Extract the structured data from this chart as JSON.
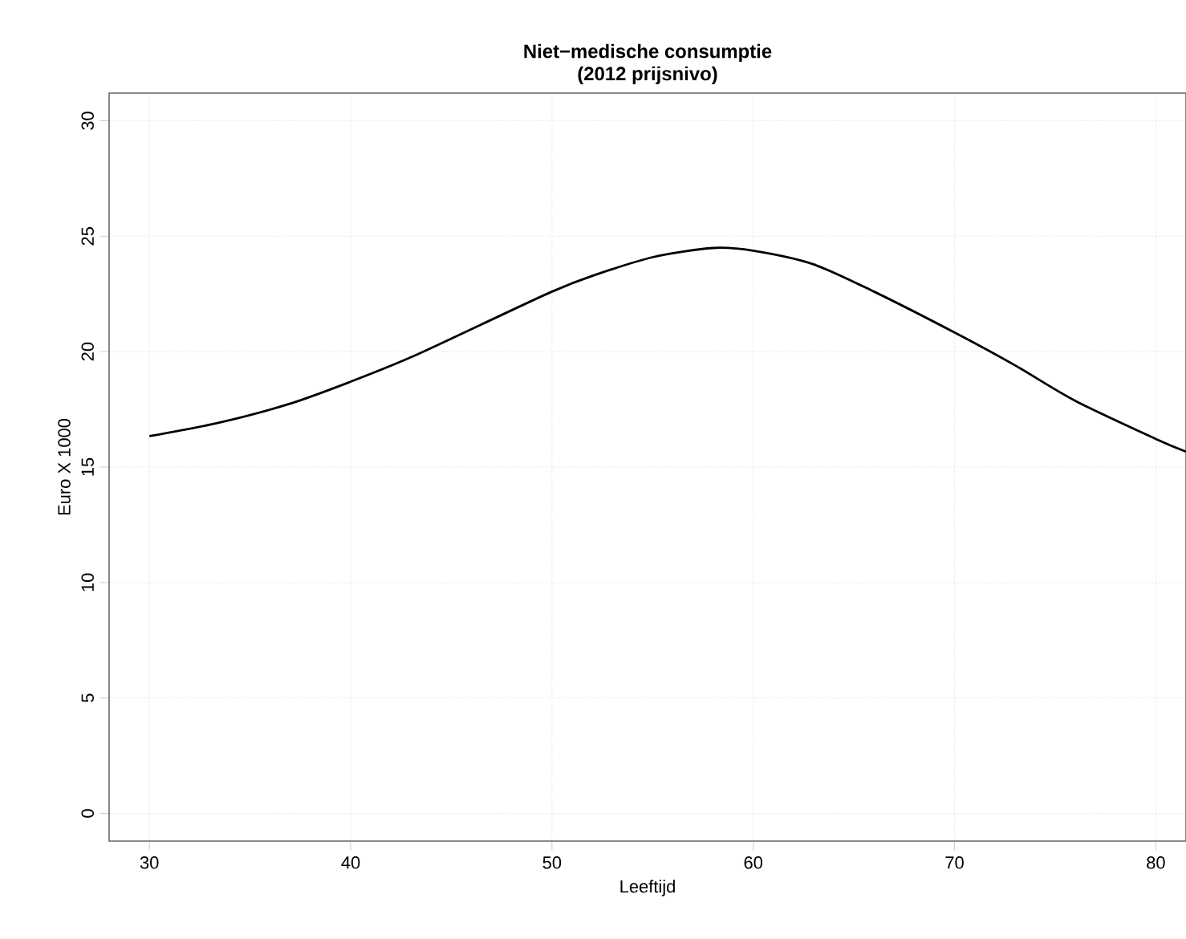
{
  "chart_data": {
    "type": "line",
    "title": "Niet−medische consumptie\n(2012 prijsnivo)",
    "xlabel": "Leeftijd",
    "ylabel": "Euro X 1000",
    "x": [
      30,
      33.5,
      37,
      40,
      43,
      46.5,
      50,
      52.1,
      55,
      58,
      60,
      63,
      66,
      70,
      73,
      76,
      80,
      81.5
    ],
    "series": [
      {
        "color": "#000000",
        "values": [
          16.34,
          16.93,
          17.75,
          18.7,
          19.76,
          21.18,
          22.6,
          23.31,
          24.09,
          24.49,
          24.37,
          23.78,
          22.6,
          20.83,
          19.41,
          17.87,
          16.22,
          15.67
        ]
      }
    ],
    "xlim": [
      28,
      81.5
    ],
    "ylim": [
      -1.2,
      31.2
    ],
    "xticks": [
      30,
      40,
      50,
      60,
      70,
      80
    ],
    "yticks": [
      0,
      5,
      10,
      15,
      20,
      25,
      30
    ],
    "grid": true,
    "marker": "none",
    "line_style": "solid"
  }
}
